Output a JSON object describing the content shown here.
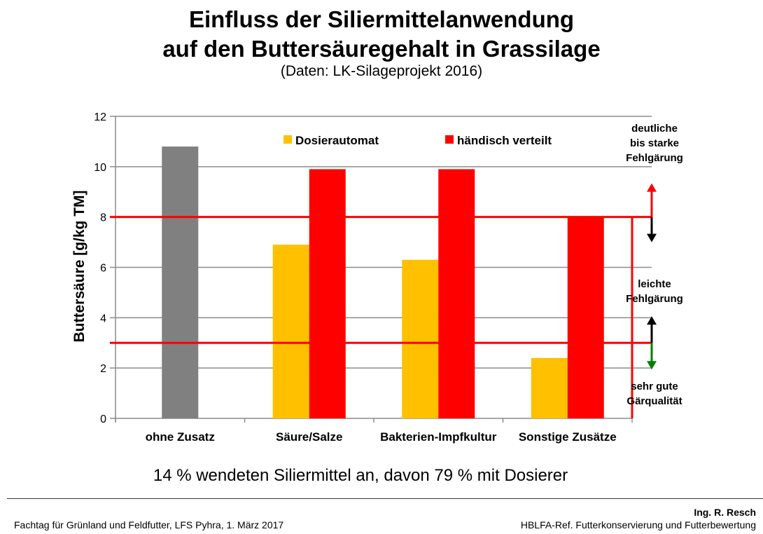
{
  "chart_data": {
    "type": "bar",
    "title": "Einfluss der Siliermittelanwendung auf den Buttersäuregehalt in Grassilage",
    "title_lines": [
      "Einfluss der Siliermittelanwendung",
      "auf den Buttersäuregehalt in Grassilage"
    ],
    "subtitle": "(Daten: LK-Silageprojekt 2016)",
    "xlabel": "",
    "ylabel": "Buttersäure [g/kg TM]",
    "ylim": [
      0,
      12
    ],
    "yticks": [
      0,
      2,
      4,
      6,
      8,
      10,
      12
    ],
    "grid": true,
    "legend_position": "top",
    "categories": [
      "ohne Zusatz",
      "Säure/Salze",
      "Bakterien-Impfkultur",
      "Sonstige Zusätze"
    ],
    "series": [
      {
        "name": "ohne Zusatz",
        "color": "#808080",
        "values": [
          10.8,
          null,
          null,
          null
        ],
        "show_in_legend": false
      },
      {
        "name": "Dosierautomat",
        "color": "#FFC000",
        "values": [
          null,
          6.9,
          6.3,
          2.4
        ]
      },
      {
        "name": "händisch verteilt",
        "color": "#FF0000",
        "values": [
          null,
          9.9,
          9.9,
          8.0
        ]
      }
    ],
    "reference_lines": [
      {
        "value": 8,
        "color": "#FF0000"
      },
      {
        "value": 3,
        "color": "#FF0000"
      }
    ],
    "zones": [
      {
        "label": "deutliche bis starke Fehlgärung",
        "lines": [
          "deutliche",
          "bis starke",
          "Fehlgärung"
        ]
      },
      {
        "label": "leichte Fehlgärung",
        "lines": [
          "leichte",
          "Fehlgärung"
        ]
      },
      {
        "label": "sehr gute Gärqualität",
        "lines": [
          "sehr gute",
          "Gärqualität"
        ]
      }
    ],
    "arrows": [
      {
        "at": 8,
        "up_color": "#FF0000",
        "down_color": "#000000"
      },
      {
        "at": 3,
        "up_color": "#000000",
        "down_color": "#008000"
      }
    ]
  },
  "note": "14 % wendeten Siliermittel an, davon 79 % mit Dosierer",
  "footer": {
    "left": "Fachtag für Grünland und Feldfutter, LFS Pyhra, 1. März 2017",
    "author": "Ing. R. Resch",
    "right": "HBLFA-Ref. Futterkonservierung und Futterbewertung"
  }
}
